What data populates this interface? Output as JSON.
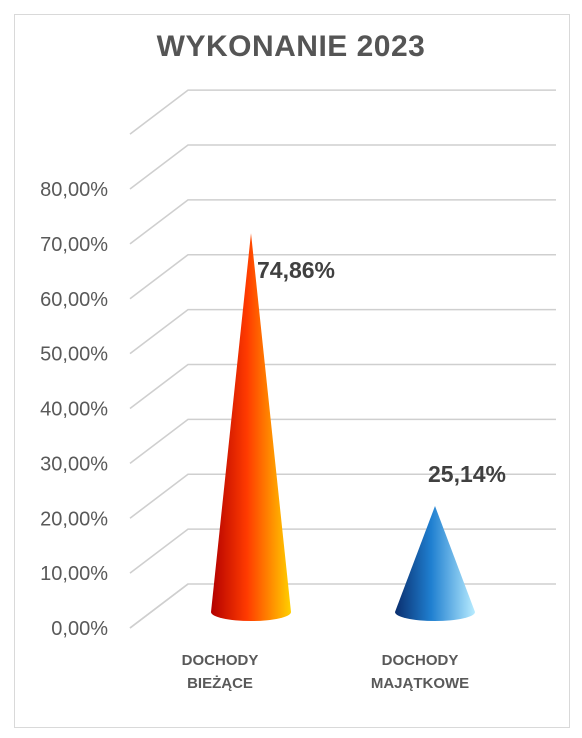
{
  "chart_data": {
    "type": "bar",
    "shape": "cone",
    "title": "WYKONANIE 2023",
    "categories": [
      [
        "DOCHODY",
        "BIEŻĄCE"
      ],
      [
        "DOCHODY",
        "MAJĄTKOWE"
      ]
    ],
    "values": [
      74.86,
      25.14
    ],
    "data_labels": [
      "74,86%",
      "25,14%"
    ],
    "y_ticks": [
      "0,00%",
      "10,00%",
      "20,00%",
      "30,00%",
      "40,00%",
      "50,00%",
      "60,00%",
      "70,00%",
      "80,00%"
    ],
    "ylim": [
      0,
      80
    ],
    "grid": true,
    "legend": "none",
    "colors": {
      "series_1": [
        "#b30000",
        "#ff3b00",
        "#ffd000"
      ],
      "series_2": [
        "#0a2e6e",
        "#1f7fd0",
        "#b8ecff"
      ],
      "gridline": "#cfcfcf",
      "text": "#595959"
    }
  }
}
